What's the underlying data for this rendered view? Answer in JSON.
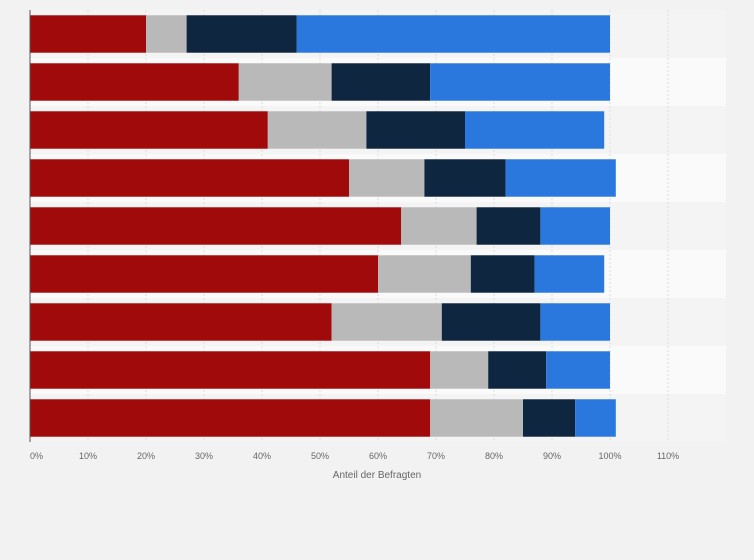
{
  "chart_data": {
    "type": "bar",
    "orientation": "horizontal",
    "stacked": true,
    "categories": [
      "",
      "",
      "",
      "",
      "",
      "",
      "",
      "",
      ""
    ],
    "series": [
      {
        "color": "#a10a0a",
        "values": [
          20,
          36,
          41,
          55,
          64,
          60,
          52,
          69,
          69
        ]
      },
      {
        "color": "#b9b9b9",
        "values": [
          7,
          16,
          17,
          13,
          13,
          16,
          19,
          10,
          16
        ]
      },
      {
        "color": "#0f2640",
        "values": [
          19,
          17,
          17,
          14,
          11,
          11,
          17,
          10,
          9
        ]
      },
      {
        "color": "#2a78de",
        "values": [
          54,
          31,
          24,
          19,
          12,
          12,
          12,
          11,
          7
        ]
      }
    ],
    "xlabel": "Anteil der Befragten",
    "xlim": [
      0,
      120
    ],
    "x_ticks": [
      "0%",
      "10%",
      "20%",
      "30%",
      "40%",
      "50%",
      "60%",
      "70%",
      "80%",
      "90%",
      "100%",
      "110%"
    ],
    "grid": true,
    "legend": "none"
  }
}
